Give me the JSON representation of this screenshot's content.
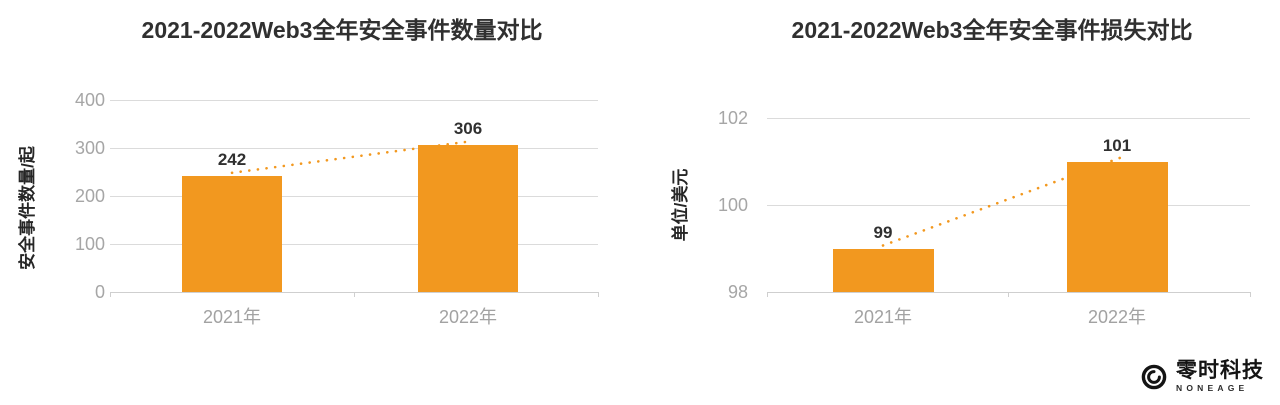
{
  "page": {
    "background": "#ffffff"
  },
  "colors": {
    "bar": "#F2981F",
    "trendline": "#F2981F",
    "gridline": "#DBDBDB",
    "axis_line": "#CFCFCF",
    "tick_label": "#A6A6A6",
    "data_label": "#303030",
    "title": "#303030",
    "logo": "#141414"
  },
  "chart_data": [
    {
      "type": "bar",
      "title": "2021-2022Web3全年安全事件数量对比",
      "categories": [
        "2021年",
        "2022年"
      ],
      "values": [
        242,
        306
      ],
      "data_labels": [
        "242",
        "306"
      ],
      "xlabel": "",
      "ylabel": "安全事件数量/起",
      "ylim": [
        0,
        400
      ],
      "yticks": [
        0,
        100,
        200,
        300,
        400
      ],
      "grid": true,
      "legend": "none",
      "trendline": "dotted-orange"
    },
    {
      "type": "bar",
      "title": "2021-2022Web3全年安全事件损失对比",
      "categories": [
        "2021年",
        "2022年"
      ],
      "values": [
        99,
        101
      ],
      "data_labels": [
        "99",
        "101"
      ],
      "xlabel": "",
      "ylabel": "单位/美元",
      "ylim": [
        98,
        102
      ],
      "yticks": [
        98,
        100,
        102
      ],
      "grid": true,
      "legend": "none",
      "trendline": "dotted-orange"
    }
  ],
  "brand": {
    "logo_icon": "swirl-ring-icon",
    "logo_text": "零时科技",
    "logo_subtext": "NONEAGE"
  }
}
